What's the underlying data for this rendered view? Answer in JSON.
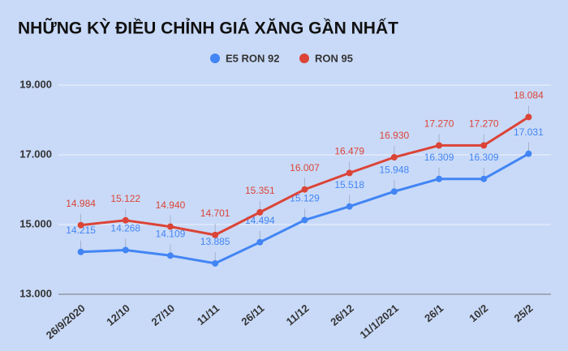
{
  "chart_data": {
    "type": "line",
    "title": "NHỮNG KỲ ĐIỀU CHỈNH GIÁ XĂNG GẦN NHẤT",
    "categories": [
      "26/9/2020",
      "12/10",
      "27/10",
      "11/11",
      "26/11",
      "11/12",
      "26/12",
      "11/1/2021",
      "26/1",
      "10/2",
      "25/2"
    ],
    "series": [
      {
        "name": "E5 RON 92",
        "color": "#4285f4",
        "values": [
          14215,
          14268,
          14109,
          13885,
          14494,
          15129,
          15518,
          15948,
          16309,
          16309,
          17031
        ],
        "value_labels": [
          "14.215",
          "14.268",
          "14.109",
          "13.885",
          "14.494",
          "15.129",
          "15.518",
          "15.948",
          "16.309",
          "16.309",
          "17.031"
        ]
      },
      {
        "name": "RON 95",
        "color": "#db4437",
        "values": [
          14984,
          15122,
          14940,
          14701,
          15351,
          16007,
          16479,
          16930,
          17270,
          17270,
          18084
        ],
        "value_labels": [
          "14.984",
          "15.122",
          "14.940",
          "14.701",
          "15.351",
          "16.007",
          "16.479",
          "16.930",
          "17.270",
          "17.270",
          "18.084"
        ]
      }
    ],
    "ylim": [
      13000,
      19000
    ],
    "yticks": [
      {
        "value": 13000,
        "label": "13.000"
      },
      {
        "value": 15000,
        "label": "15.000"
      },
      {
        "value": 17000,
        "label": "17.000"
      },
      {
        "value": 19000,
        "label": "19.000"
      }
    ],
    "grid": true,
    "legend": "top"
  }
}
